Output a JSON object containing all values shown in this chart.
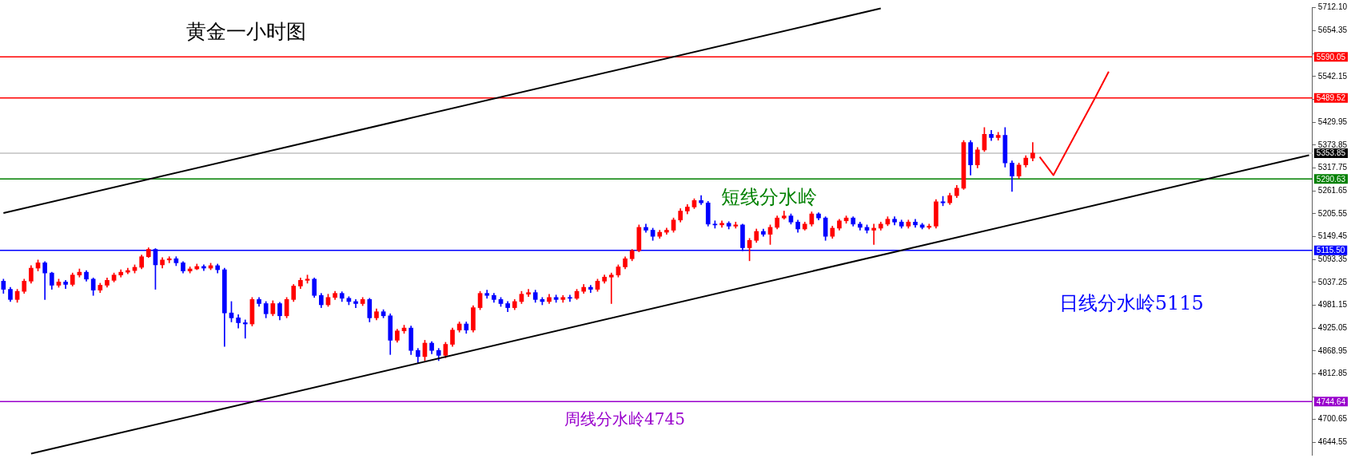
{
  "chart_data": {
    "type": "candlestick",
    "title": "黄金一小时图",
    "categories": [
      null,
      null,
      null,
      null,
      null,
      null,
      null,
      null,
      null,
      null,
      null,
      null,
      null,
      null,
      null,
      null,
      null,
      null,
      null,
      null,
      null,
      null,
      null,
      null,
      null,
      null,
      null,
      null,
      null,
      null,
      null,
      null,
      null,
      null,
      null,
      null,
      null,
      null,
      null,
      null,
      null,
      null,
      null,
      null,
      null,
      null,
      null,
      null,
      null,
      null,
      null,
      null,
      null,
      null,
      null,
      null,
      null,
      null,
      null,
      null,
      null,
      null,
      null,
      null,
      null,
      null,
      null,
      null,
      null,
      null,
      null,
      null,
      null,
      null,
      null,
      null,
      null,
      null,
      null,
      null,
      null,
      null,
      null,
      null,
      null,
      null,
      null,
      null,
      null,
      null,
      null,
      null,
      null,
      null,
      null,
      null,
      null,
      null,
      null,
      null,
      null,
      null,
      null,
      null,
      null,
      null,
      null,
      null,
      null,
      null,
      null,
      null,
      null,
      null,
      null,
      null,
      null,
      null,
      null,
      null,
      null,
      null,
      null,
      null,
      null,
      null,
      null,
      null,
      null,
      null,
      null,
      null,
      null,
      null,
      null,
      null,
      null,
      null,
      null,
      null,
      null,
      null,
      null,
      null,
      null,
      null,
      null,
      null,
      null,
      null,
      null,
      null,
      null,
      null,
      null,
      null,
      null,
      null,
      null,
      null,
      null,
      null,
      null,
      null,
      null,
      null,
      null,
      null,
      null,
      null,
      null,
      null,
      null,
      null,
      null,
      null,
      null,
      null,
      null,
      null,
      null,
      null,
      null,
      null,
      null,
      null,
      null,
      null,
      null,
      null
    ],
    "ohlc": [
      [
        5040,
        5045,
        5010,
        5020
      ],
      [
        5020,
        5025,
        4990,
        4995
      ],
      [
        4995,
        5020,
        4988,
        5015
      ],
      [
        5015,
        5045,
        5010,
        5040
      ],
      [
        5040,
        5078,
        5035,
        5072
      ],
      [
        5072,
        5092,
        5065,
        5085
      ],
      [
        5085,
        5088,
        4995,
        5060
      ],
      [
        5060,
        5062,
        5020,
        5030
      ],
      [
        5030,
        5045,
        5025,
        5038
      ],
      [
        5038,
        5042,
        5022,
        5032
      ],
      [
        5032,
        5060,
        5028,
        5055
      ],
      [
        5055,
        5070,
        5050,
        5062
      ],
      [
        5062,
        5066,
        5040,
        5045
      ],
      [
        5045,
        5048,
        5005,
        5018
      ],
      [
        5018,
        5035,
        5012,
        5030
      ],
      [
        5030,
        5048,
        5025,
        5042
      ],
      [
        5042,
        5060,
        5038,
        5055
      ],
      [
        5055,
        5068,
        5050,
        5062
      ],
      [
        5062,
        5072,
        5058,
        5066
      ],
      [
        5066,
        5080,
        5060,
        5074
      ],
      [
        5074,
        5104,
        5070,
        5100
      ],
      [
        5100,
        5122,
        5098,
        5118
      ],
      [
        5118,
        5120,
        5020,
        5080
      ],
      [
        5080,
        5098,
        5072,
        5092
      ],
      [
        5092,
        5100,
        5085,
        5095
      ],
      [
        5095,
        5100,
        5078,
        5085
      ],
      [
        5085,
        5088,
        5060,
        5065
      ],
      [
        5065,
        5075,
        5060,
        5070
      ],
      [
        5070,
        5082,
        5068,
        5076
      ],
      [
        5076,
        5080,
        5066,
        5072
      ],
      [
        5072,
        5084,
        5068,
        5078
      ],
      [
        5078,
        5082,
        5060,
        5068
      ],
      [
        5068,
        5072,
        4880,
        4962
      ],
      [
        4962,
        4990,
        4940,
        4950
      ],
      [
        4950,
        4958,
        4925,
        4938
      ],
      [
        4938,
        4945,
        4900,
        4935
      ],
      [
        4935,
        5000,
        4930,
        4995
      ],
      [
        4995,
        5000,
        4978,
        4985
      ],
      [
        4985,
        4990,
        4950,
        4960
      ],
      [
        4960,
        4992,
        4955,
        4985
      ],
      [
        4985,
        4988,
        4945,
        4955
      ],
      [
        4955,
        5000,
        4950,
        4995
      ],
      [
        4995,
        5032,
        4990,
        5028
      ],
      [
        5028,
        5048,
        5022,
        5042
      ],
      [
        5042,
        5055,
        5035,
        5045
      ],
      [
        5045,
        5048,
        5000,
        5005
      ],
      [
        5005,
        5010,
        4975,
        4982
      ],
      [
        4982,
        5008,
        4978,
        5000
      ],
      [
        5000,
        5015,
        4995,
        5010
      ],
      [
        5010,
        5014,
        4990,
        4998
      ],
      [
        4998,
        5002,
        4982,
        4990
      ],
      [
        4990,
        4995,
        4975,
        4985
      ],
      [
        4985,
        5000,
        4980,
        4995
      ],
      [
        4995,
        4998,
        4940,
        4950
      ],
      [
        4950,
        4972,
        4945,
        4965
      ],
      [
        4965,
        4970,
        4950,
        4955
      ],
      [
        4955,
        4960,
        4860,
        4895
      ],
      [
        4895,
        4922,
        4890,
        4918
      ],
      [
        4918,
        4932,
        4912,
        4925
      ],
      [
        4925,
        4930,
        4860,
        4870
      ],
      [
        4870,
        4875,
        4840,
        4855
      ],
      [
        4855,
        4895,
        4845,
        4888
      ],
      [
        4888,
        4892,
        4862,
        4870
      ],
      [
        4870,
        4875,
        4845,
        4858
      ],
      [
        4858,
        4890,
        4852,
        4885
      ],
      [
        4885,
        4925,
        4880,
        4920
      ],
      [
        4920,
        4940,
        4915,
        4935
      ],
      [
        4935,
        4940,
        4912,
        4920
      ],
      [
        4920,
        4980,
        4915,
        4975
      ],
      [
        4975,
        5015,
        4970,
        5010
      ],
      [
        5010,
        5018,
        4998,
        5005
      ],
      [
        5005,
        5010,
        4988,
        4995
      ],
      [
        4995,
        5000,
        4978,
        4985
      ],
      [
        4985,
        4990,
        4965,
        4975
      ],
      [
        4975,
        4995,
        4970,
        4990
      ],
      [
        4990,
        5015,
        4985,
        5008
      ],
      [
        5008,
        5020,
        5002,
        5012
      ],
      [
        5012,
        5018,
        4988,
        4995
      ],
      [
        4995,
        5000,
        4982,
        4990
      ],
      [
        4990,
        5008,
        4985,
        5000
      ],
      [
        5000,
        5006,
        4988,
        4995
      ],
      [
        4995,
        5005,
        4988,
        5000
      ],
      [
        5000,
        5006,
        4990,
        4998
      ],
      [
        4998,
        5020,
        4995,
        5015
      ],
      [
        5015,
        5032,
        5010,
        5025
      ],
      [
        5025,
        5030,
        5012,
        5020
      ],
      [
        5020,
        5045,
        5015,
        5040
      ],
      [
        5040,
        5055,
        5035,
        5050
      ],
      [
        5050,
        5060,
        4985,
        5055
      ],
      [
        5055,
        5080,
        5050,
        5075
      ],
      [
        5075,
        5100,
        5070,
        5095
      ],
      [
        5095,
        5118,
        5090,
        5115
      ],
      [
        5115,
        5178,
        5112,
        5172
      ],
      [
        5172,
        5180,
        5160,
        5165
      ],
      [
        5165,
        5170,
        5140,
        5150
      ],
      [
        5150,
        5165,
        5145,
        5160
      ],
      [
        5160,
        5170,
        5155,
        5165
      ],
      [
        5165,
        5195,
        5160,
        5190
      ],
      [
        5190,
        5218,
        5185,
        5212
      ],
      [
        5212,
        5228,
        5205,
        5222
      ],
      [
        5222,
        5242,
        5218,
        5238
      ],
      [
        5238,
        5250,
        5228,
        5232
      ],
      [
        5232,
        5236,
        5175,
        5180
      ],
      [
        5180,
        5188,
        5170,
        5178
      ],
      [
        5178,
        5188,
        5172,
        5182
      ],
      [
        5182,
        5186,
        5168,
        5175
      ],
      [
        5175,
        5185,
        5170,
        5178
      ],
      [
        5178,
        5180,
        5115,
        5122
      ],
      [
        5122,
        5145,
        5090,
        5140
      ],
      [
        5140,
        5168,
        5135,
        5162
      ],
      [
        5162,
        5168,
        5150,
        5155
      ],
      [
        5155,
        5178,
        5130,
        5172
      ],
      [
        5172,
        5200,
        5168,
        5195
      ],
      [
        5195,
        5212,
        5192,
        5200
      ],
      [
        5200,
        5205,
        5180,
        5185
      ],
      [
        5185,
        5190,
        5160,
        5168
      ],
      [
        5168,
        5185,
        5165,
        5180
      ],
      [
        5180,
        5210,
        5175,
        5205
      ],
      [
        5205,
        5208,
        5190,
        5195
      ],
      [
        5195,
        5198,
        5140,
        5150
      ],
      [
        5150,
        5175,
        5145,
        5170
      ],
      [
        5170,
        5192,
        5165,
        5188
      ],
      [
        5188,
        5200,
        5182,
        5195
      ],
      [
        5195,
        5198,
        5175,
        5180
      ],
      [
        5180,
        5185,
        5165,
        5172
      ],
      [
        5172,
        5178,
        5158,
        5165
      ],
      [
        5165,
        5180,
        5130,
        5170
      ],
      [
        5170,
        5185,
        5165,
        5180
      ],
      [
        5180,
        5198,
        5176,
        5192
      ],
      [
        5192,
        5198,
        5178,
        5185
      ],
      [
        5185,
        5190,
        5170,
        5175
      ],
      [
        5175,
        5190,
        5170,
        5185
      ],
      [
        5185,
        5192,
        5172,
        5178
      ],
      [
        5178,
        5182,
        5168,
        5172
      ],
      [
        5172,
        5180,
        5168,
        5175
      ],
      [
        5175,
        5240,
        5170,
        5235
      ],
      [
        5235,
        5248,
        5225,
        5232
      ],
      [
        5232,
        5256,
        5228,
        5250
      ],
      [
        5250,
        5275,
        5245,
        5268
      ],
      [
        5268,
        5385,
        5265,
        5380
      ],
      [
        5380,
        5385,
        5300,
        5325
      ],
      [
        5325,
        5368,
        5318,
        5362
      ],
      [
        5362,
        5417,
        5358,
        5400
      ],
      [
        5400,
        5410,
        5385,
        5392
      ],
      [
        5392,
        5405,
        5386,
        5398
      ],
      [
        5398,
        5417,
        5320,
        5330
      ],
      [
        5330,
        5335,
        5260,
        5298
      ],
      [
        5298,
        5330,
        5292,
        5325
      ],
      [
        5325,
        5348,
        5320,
        5342
      ],
      [
        5342,
        5380,
        5335,
        5354
      ],
      null,
      null,
      null,
      null,
      null,
      null,
      null,
      null,
      null,
      null,
      null,
      null,
      null,
      null,
      null,
      null,
      null,
      null,
      null,
      null,
      null,
      null,
      null,
      null,
      null,
      null,
      null,
      null,
      null,
      null,
      null,
      null,
      null,
      null,
      null,
      null,
      null,
      null,
      null,
      null
    ],
    "colors": [
      "#0000ff",
      "#0000ff",
      "#ff0000",
      "#ff0000",
      "#ff0000",
      "#ff0000",
      "#0000ff",
      "#0000ff",
      "#ff0000",
      "#0000ff",
      "#ff0000",
      "#ff0000",
      "#0000ff",
      "#0000ff",
      "#ff0000",
      "#ff0000",
      "#ff0000",
      "#ff0000",
      "#ff0000",
      "#ff0000",
      "#ff0000",
      "#ff0000",
      "#0000ff",
      "#ff0000",
      "#ff0000",
      "#0000ff",
      "#0000ff",
      "#ff0000",
      "#ff0000",
      "#0000ff",
      "#ff0000",
      "#0000ff",
      "#0000ff",
      "#0000ff",
      "#0000ff",
      "#0000ff",
      "#ff0000",
      "#0000ff",
      "#0000ff",
      "#ff0000",
      "#0000ff",
      "#ff0000",
      "#ff0000",
      "#ff0000",
      "#ff0000",
      "#0000ff",
      "#0000ff",
      "#ff0000",
      "#ff0000",
      "#0000ff",
      "#0000ff",
      "#0000ff",
      "#ff0000",
      "#0000ff",
      "#ff0000",
      "#0000ff",
      "#0000ff",
      "#ff0000",
      "#ff0000",
      "#0000ff",
      "#0000ff",
      "#ff0000",
      "#0000ff",
      "#0000ff",
      "#ff0000",
      "#ff0000",
      "#ff0000",
      "#0000ff",
      "#ff0000",
      "#ff0000",
      "#0000ff",
      "#0000ff",
      "#0000ff",
      "#0000ff",
      "#ff0000",
      "#ff0000",
      "#ff0000",
      "#0000ff",
      "#0000ff",
      "#ff0000",
      "#0000ff",
      "#ff0000",
      "#0000ff",
      "#ff0000",
      "#ff0000",
      "#0000ff",
      "#ff0000",
      "#ff0000",
      "#ff0000",
      "#ff0000",
      "#ff0000",
      "#ff0000",
      "#ff0000",
      "#0000ff",
      "#0000ff",
      "#ff0000",
      "#ff0000",
      "#ff0000",
      "#ff0000",
      "#ff0000",
      "#ff0000",
      "#0000ff",
      "#0000ff",
      "#0000ff",
      "#ff0000",
      "#0000ff",
      "#ff0000",
      "#0000ff",
      "#ff0000",
      "#ff0000",
      "#0000ff",
      "#ff0000",
      "#ff0000",
      "#ff0000",
      "#0000ff",
      "#0000ff",
      "#ff0000",
      "#ff0000",
      "#0000ff",
      "#0000ff",
      "#ff0000",
      "#ff0000",
      "#ff0000",
      "#0000ff",
      "#0000ff",
      "#0000ff",
      "#ff0000",
      "#ff0000",
      "#ff0000",
      "#0000ff",
      "#0000ff",
      "#ff0000",
      "#0000ff",
      "#0000ff",
      "#ff0000",
      "#ff0000",
      "#0000ff",
      "#ff0000",
      "#ff0000",
      "#ff0000",
      "#0000ff",
      "#ff0000",
      "#ff0000",
      "#0000ff",
      "#ff0000",
      "#0000ff",
      "#0000ff",
      "#ff0000",
      "#ff0000",
      "#ff0000",
      null,
      null,
      null,
      null,
      null,
      null,
      null,
      null,
      null,
      null,
      null,
      null,
      null,
      null,
      null,
      null,
      null,
      null,
      null,
      null,
      null,
      null,
      null,
      null,
      null,
      null,
      null,
      null,
      null,
      null,
      null,
      null,
      null,
      null,
      null,
      null,
      null,
      null,
      null,
      null
    ],
    "series": [
      {
        "type": "line",
        "color": "#000000",
        "values": [
          5207,
          null,
          null,
          null,
          null,
          null,
          null,
          null,
          null,
          null,
          null,
          null,
          null,
          null,
          null,
          null,
          null,
          null,
          null,
          null,
          null,
          null,
          null,
          null,
          null,
          null,
          null,
          null,
          null,
          null,
          null,
          null,
          null,
          null,
          null,
          null,
          null,
          null,
          null,
          null,
          null,
          null,
          null,
          null,
          null,
          null,
          null,
          null,
          null,
          null,
          null,
          null,
          null,
          null,
          null,
          null,
          null,
          null,
          null,
          null,
          null,
          null,
          null,
          null,
          null,
          null,
          null,
          null,
          null,
          null,
          null,
          null,
          null,
          null,
          null,
          null,
          null,
          null,
          null,
          null,
          null,
          null,
          null,
          null,
          null,
          null,
          null,
          null,
          null,
          null,
          null,
          null,
          null,
          null,
          null,
          null,
          null,
          null,
          null,
          null,
          null,
          null,
          null,
          null,
          null,
          null,
          null,
          null,
          null,
          null,
          null,
          null,
          null,
          null,
          null,
          null,
          null,
          null,
          null,
          null,
          null,
          null,
          null,
          null,
          null,
          null,
          null,
          5709,
          null,
          null,
          null,
          null,
          null,
          null,
          null,
          null,
          null,
          null,
          null,
          null,
          null,
          null,
          null,
          null,
          null,
          null,
          null,
          null,
          null,
          null,
          null,
          null,
          null,
          null,
          null,
          null,
          null,
          null,
          null,
          null,
          null,
          null,
          null,
          null,
          null,
          null,
          null,
          null,
          null,
          null,
          null,
          null,
          null,
          null,
          null,
          null,
          null,
          null,
          null,
          null,
          null,
          null,
          null,
          null,
          null,
          null,
          null,
          null,
          null,
          null
        ]
      },
      {
        "type": "line",
        "color": "#000000",
        "values": [
          null,
          null,
          null,
          null,
          4617,
          null,
          null,
          null,
          null,
          null,
          null,
          null,
          null,
          null,
          null,
          null,
          null,
          null,
          null,
          null,
          null,
          null,
          null,
          null,
          null,
          null,
          null,
          null,
          null,
          null,
          null,
          null,
          null,
          null,
          null,
          null,
          null,
          null,
          null,
          null,
          null,
          null,
          null,
          null,
          null,
          null,
          null,
          null,
          null,
          null,
          null,
          null,
          null,
          null,
          null,
          null,
          null,
          null,
          null,
          null,
          null,
          null,
          null,
          null,
          null,
          null,
          null,
          null,
          null,
          null,
          null,
          null,
          null,
          null,
          null,
          null,
          null,
          null,
          null,
          null,
          null,
          null,
          null,
          null,
          null,
          null,
          null,
          null,
          null,
          null,
          null,
          null,
          null,
          null,
          null,
          null,
          null,
          null,
          null,
          null,
          null,
          null,
          null,
          null,
          null,
          null,
          null,
          null,
          null,
          null,
          null,
          null,
          null,
          null,
          null,
          null,
          null,
          null,
          null,
          null,
          null,
          null,
          null,
          null,
          null,
          null,
          null,
          null,
          null,
          null,
          null,
          null,
          null,
          null,
          null,
          null,
          null,
          null,
          null,
          null,
          null,
          null,
          null,
          null,
          null,
          null,
          null,
          null,
          null,
          null,
          null,
          null,
          null,
          null,
          null,
          null,
          null,
          null,
          null,
          null,
          null,
          null,
          null,
          null,
          null,
          null,
          null,
          null,
          null,
          null,
          null,
          null,
          null,
          null,
          null,
          null,
          null,
          null,
          null,
          null,
          null,
          null,
          null,
          null,
          null,
          null,
          null,
          null,
          null,
          5349
        ]
      },
      {
        "type": "line",
        "color": "#ff0000",
        "values": [
          null,
          null,
          null,
          null,
          null,
          null,
          null,
          null,
          null,
          null,
          null,
          null,
          null,
          null,
          null,
          null,
          null,
          null,
          null,
          null,
          null,
          null,
          null,
          null,
          null,
          null,
          null,
          null,
          null,
          null,
          null,
          null,
          null,
          null,
          null,
          null,
          null,
          null,
          null,
          null,
          null,
          null,
          null,
          null,
          null,
          null,
          null,
          null,
          null,
          null,
          null,
          null,
          null,
          null,
          null,
          null,
          null,
          null,
          null,
          null,
          null,
          null,
          null,
          null,
          null,
          null,
          null,
          null,
          null,
          null,
          null,
          null,
          null,
          null,
          null,
          null,
          null,
          null,
          null,
          null,
          null,
          null,
          null,
          null,
          null,
          null,
          null,
          null,
          null,
          null,
          null,
          null,
          null,
          null,
          null,
          null,
          null,
          null,
          null,
          null,
          null,
          null,
          null,
          null,
          null,
          null,
          null,
          null,
          null,
          null,
          null,
          null,
          null,
          null,
          null,
          null,
          null,
          null,
          null,
          null,
          null,
          null,
          null,
          null,
          null,
          null,
          null,
          null,
          null,
          null,
          null,
          null,
          null,
          null,
          null,
          null,
          null,
          null,
          null,
          null,
          null,
          null,
          null,
          null,
          null,
          null,
          null,
          null,
          null,
          null,
          5345,
          null,
          5300,
          null,
          null,
          null,
          null,
          null,
          5489,
          null,
          5554,
          null,
          null,
          null,
          null,
          null,
          null,
          null,
          null,
          null,
          null,
          null,
          null,
          null,
          null,
          null,
          null,
          null,
          null,
          null,
          null,
          null,
          null,
          null,
          null,
          null,
          null,
          null,
          null,
          null
        ]
      }
    ],
    "ref_lines": [
      {
        "axis": "y",
        "value": 5590.05,
        "color": "#ff0000",
        "label": "5590.05"
      },
      {
        "axis": "y",
        "value": 5489.52,
        "color": "#ff0000",
        "label": "5489.52"
      },
      {
        "axis": "y",
        "value": 5353.85,
        "color": "#c0c0c0",
        "label": "5353.85"
      },
      {
        "axis": "y",
        "value": 5290.63,
        "color": "#008000",
        "label": "5290.63"
      },
      {
        "axis": "y",
        "value": 5115.5,
        "color": "#0000ff",
        "label": "5115.50"
      },
      {
        "axis": "y",
        "value": 4744.64,
        "color": "#9900cc",
        "label": "4744.64"
      }
    ],
    "annotations": [
      {
        "text": "短线分水岭",
        "y": 5290.63
      },
      {
        "text": "日线分水岭5115",
        "y": 5115.5
      },
      {
        "text": "周线分水岭4745",
        "y": 4744.64
      }
    ],
    "ylim": [
      4614,
      5712.1
    ],
    "yticks": [
      4644.55,
      4700.65,
      {
        "value": 4756.75,
        "label": null
      },
      4812.85,
      4868.95,
      4925.05,
      4981.15,
      5037.25,
      5093.35,
      5149.45,
      5205.55,
      5261.65,
      5317.75,
      5373.85,
      5429.95,
      {
        "value": 5486.05,
        "label": null
      },
      5542.15,
      {
        "value": 5598.25,
        "label": null
      },
      5654.35,
      {
        "value": 5712.1,
        "label": "5712.10"
      }
    ],
    "grid": false,
    "legend": false,
    "tick_labels": "y"
  }
}
